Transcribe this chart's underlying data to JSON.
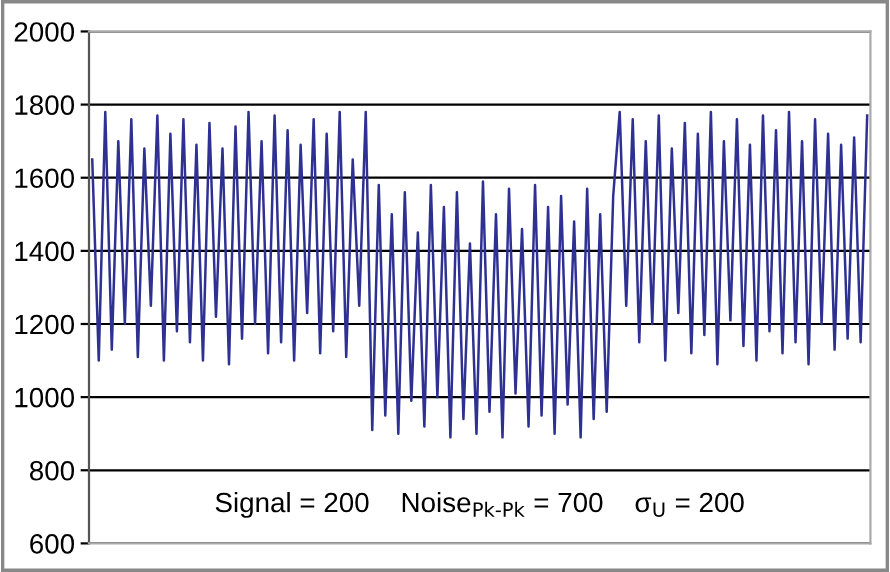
{
  "chart_data": {
    "type": "line",
    "categories": [
      null,
      null,
      null,
      null,
      null,
      null,
      null,
      null,
      null,
      null,
      null,
      null,
      null,
      null,
      null,
      null,
      null,
      null,
      null,
      null,
      null,
      null,
      null,
      null,
      null,
      null,
      null,
      null,
      null,
      null,
      null,
      null,
      null,
      null,
      null,
      null,
      null,
      null,
      null,
      null,
      null,
      null,
      null,
      null,
      null,
      null,
      null,
      null,
      null,
      null,
      null,
      null,
      null,
      null,
      null,
      null,
      null,
      null,
      null,
      null,
      null,
      null,
      null,
      null,
      null,
      null,
      null,
      null,
      null,
      null,
      null,
      null,
      null,
      null,
      null,
      null,
      null,
      null,
      null,
      null,
      null,
      null,
      null,
      null,
      null,
      null,
      null,
      null,
      null,
      null,
      null,
      null,
      null,
      null,
      null,
      null,
      null,
      null,
      null,
      null,
      null,
      null,
      null,
      null,
      null,
      null,
      null,
      null,
      null,
      null,
      null,
      null,
      null,
      null,
      null,
      null,
      null,
      null,
      null,
      null
    ],
    "series": [
      {
        "color": "#2e3192",
        "values": [
          1650,
          1100,
          1780,
          1130,
          1700,
          1200,
          1760,
          1110,
          1680,
          1250,
          1770,
          1100,
          1720,
          1180,
          1760,
          1150,
          1690,
          1100,
          1750,
          1220,
          1680,
          1090,
          1740,
          1160,
          1780,
          1200,
          1700,
          1120,
          1770,
          1150,
          1730,
          1100,
          1690,
          1230,
          1760,
          1120,
          1720,
          1180,
          1780,
          1110,
          1650,
          1250,
          1780,
          910,
          1580,
          950,
          1500,
          900,
          1560,
          990,
          1450,
          920,
          1580,
          1000,
          1520,
          890,
          1560,
          940,
          1420,
          900,
          1590,
          960,
          1500,
          890,
          1570,
          1010,
          1460,
          920,
          1580,
          950,
          1520,
          900,
          1550,
          980,
          1480,
          890,
          1570,
          940,
          1500,
          960,
          1550,
          1780,
          1250,
          1760,
          1150,
          1700,
          1200,
          1770,
          1100,
          1680,
          1230,
          1750,
          1120,
          1720,
          1170,
          1780,
          1090,
          1700,
          1210,
          1760,
          1140,
          1690,
          1100,
          1770,
          1180,
          1730,
          1120,
          1780,
          1150,
          1700,
          1090,
          1760,
          1200,
          1720,
          1130,
          1690,
          1160,
          1710,
          1150,
          1770
        ]
      }
    ],
    "ylim": [
      600,
      2000
    ],
    "yticks": [
      600,
      800,
      1000,
      1200,
      1400,
      1600,
      1800,
      2000
    ],
    "grid": "y",
    "tick_labels": "y",
    "legend": false,
    "annotations": [
      "Signal = 200    Noise$_{Pk-Pk}$ = 700    σ$_{U}$ = 200"
    ]
  }
}
